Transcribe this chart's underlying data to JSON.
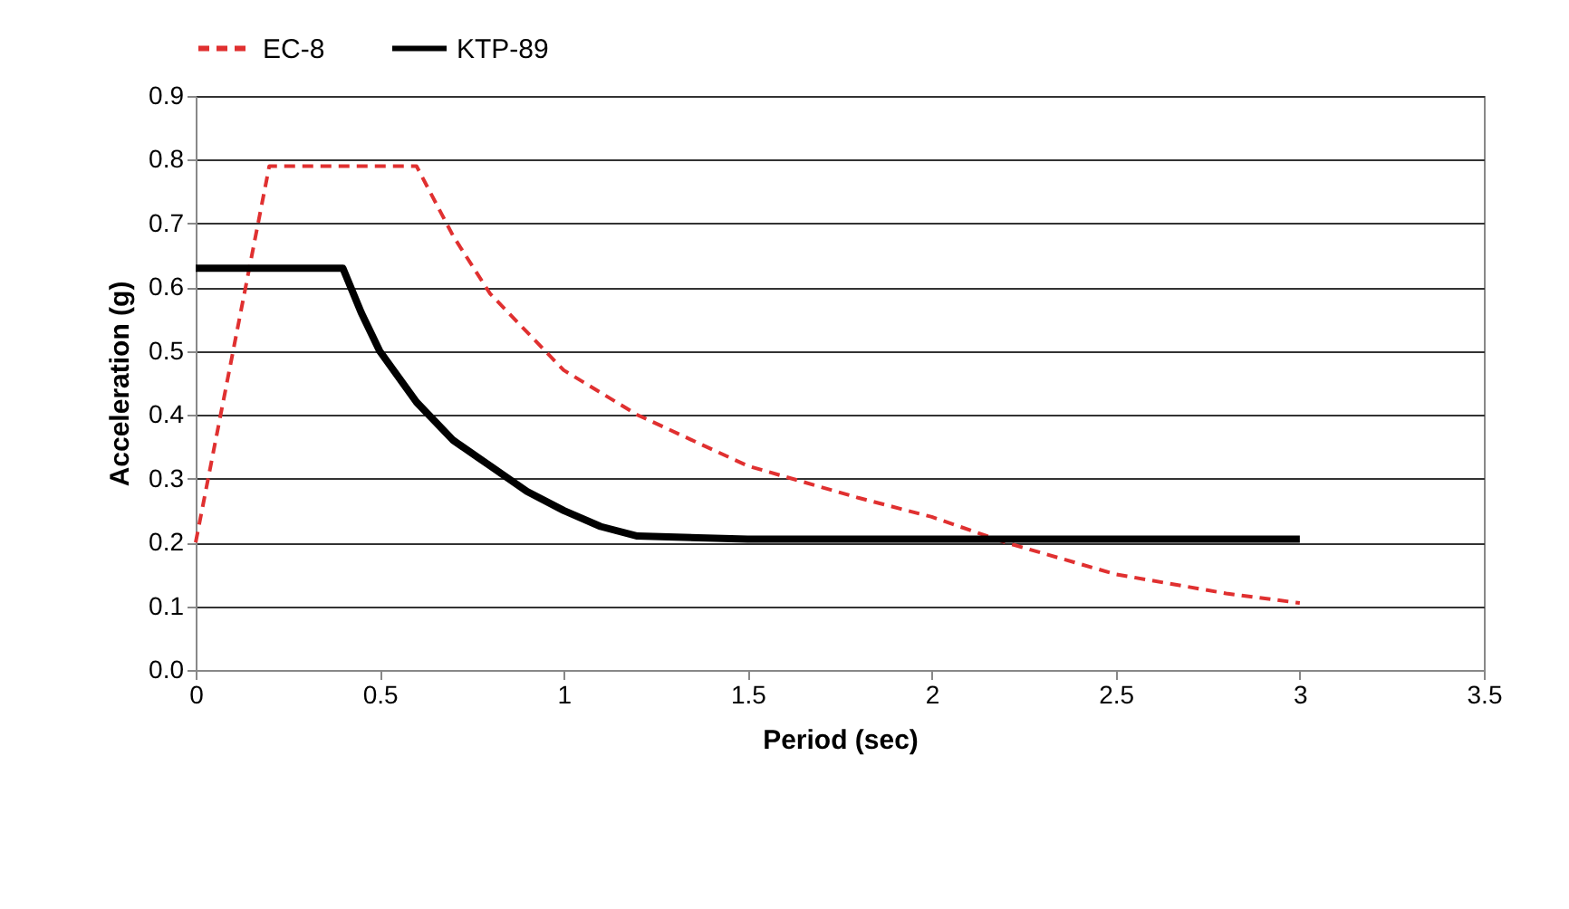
{
  "chart_data": {
    "type": "line",
    "xlabel": "Period (sec)",
    "ylabel": "Acceleration (g)",
    "xlim": [
      0,
      3.5
    ],
    "xticks": [
      0,
      0.5,
      1,
      1.5,
      2,
      2.5,
      3,
      3.5
    ],
    "ylim": [
      0,
      0.9
    ],
    "yticks": [
      {
        "value": 0,
        "label": "0.0"
      },
      0.1,
      0.2,
      0.3,
      0.4,
      0.5,
      0.6,
      0.7,
      0.8,
      0.9
    ],
    "grid": "y",
    "legend": "top",
    "marker": "none",
    "series": [
      {
        "name": "EC-8",
        "color": "#e03030",
        "line_style": "dashed",
        "x": [
          0,
          0.2,
          0.6,
          0.7,
          0.8,
          0.9,
          1.0,
          1.2,
          1.5,
          1.8,
          2.0,
          2.2,
          2.5,
          2.8,
          3.0
        ],
        "values": [
          0.2,
          0.79,
          0.79,
          0.68,
          0.59,
          0.53,
          0.47,
          0.4,
          0.32,
          0.27,
          0.24,
          0.2,
          0.15,
          0.12,
          0.105
        ]
      },
      {
        "name": "KTP-89",
        "color": "#000000",
        "line_style": "solid",
        "x": [
          0,
          0.4,
          0.45,
          0.5,
          0.6,
          0.7,
          0.8,
          0.9,
          1.0,
          1.1,
          1.2,
          1.5,
          2.0,
          2.5,
          3.0
        ],
        "values": [
          0.63,
          0.63,
          0.56,
          0.5,
          0.42,
          0.36,
          0.32,
          0.28,
          0.25,
          0.225,
          0.21,
          0.205,
          0.205,
          0.205,
          0.205
        ]
      }
    ]
  }
}
